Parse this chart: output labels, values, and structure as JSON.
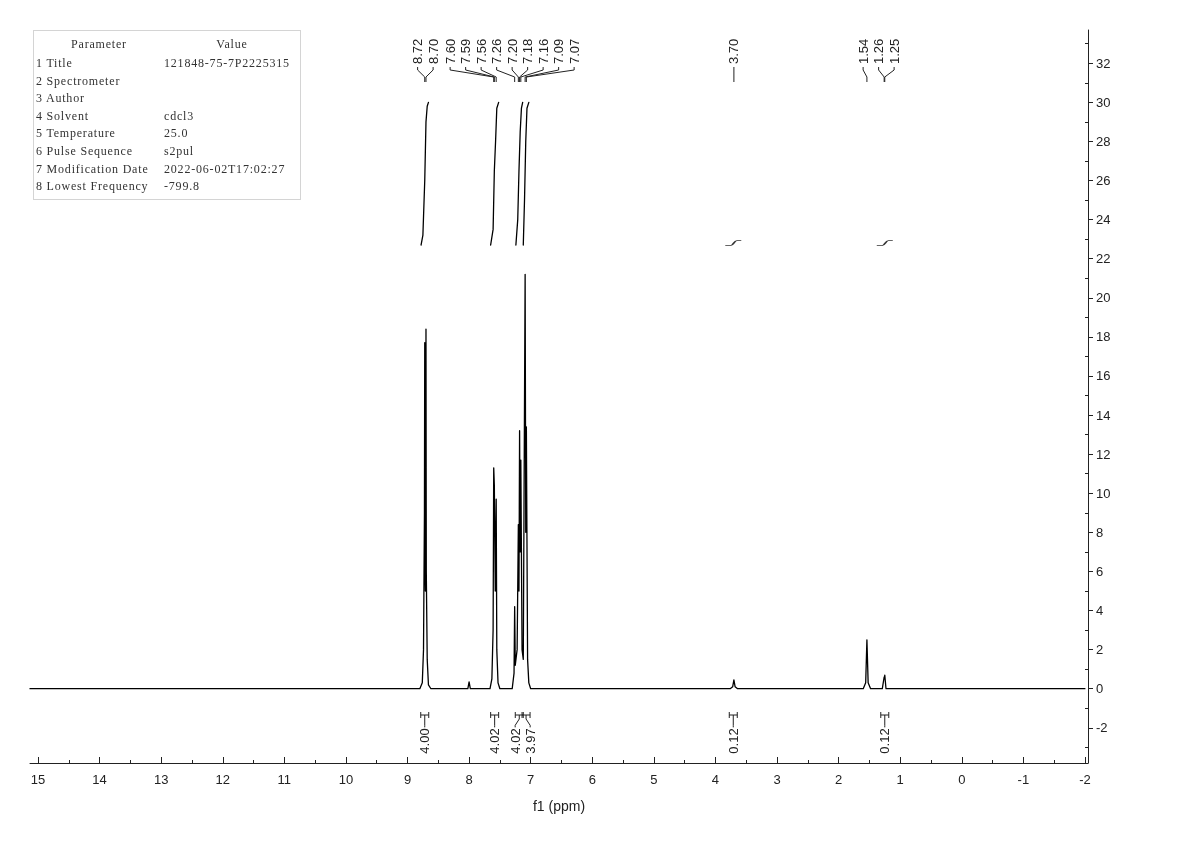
{
  "chart_data": [
    {
      "type": "other",
      "annotations": [
        "Parameter",
        "Value",
        "1 Title",
        "121848-75-7P2225315",
        "2 Spectrometer",
        null,
        "3 Author",
        null,
        "4 Solvent",
        "cdcl3",
        "5 Temperature",
        "25.0",
        "6 Pulse Sequence",
        "s2pul",
        "7 Modification Date",
        "2022-06-02T17:02:27",
        "8 Lowest Frequency",
        "-799.8"
      ]
    },
    {
      "type": "line",
      "xlabel": "f1 (ppm)",
      "xlim": [
        15.13,
        -2.05
      ],
      "xticks": [
        15,
        {
          "value": 14.5,
          "label": null
        },
        14,
        {
          "value": 13.5,
          "label": null
        },
        13,
        {
          "value": 12.5,
          "label": null
        },
        12,
        {
          "value": 11.5,
          "label": null
        },
        11,
        {
          "value": 10.5,
          "label": null
        },
        10,
        {
          "value": 9.5,
          "label": null
        },
        9,
        {
          "value": 8.5,
          "label": null
        },
        8,
        {
          "value": 7.5,
          "label": null
        },
        7,
        {
          "value": 6.5,
          "label": null
        },
        6,
        {
          "value": 5.5,
          "label": null
        },
        5,
        {
          "value": 4.5,
          "label": null
        },
        4,
        {
          "value": 3.5,
          "label": null
        },
        3,
        {
          "value": 2.5,
          "label": null
        },
        2,
        {
          "value": 1.5,
          "label": null
        },
        1,
        {
          "value": 0.5,
          "label": null
        },
        0,
        {
          "value": -0.5,
          "label": null
        },
        -1,
        {
          "value": -1.5,
          "label": null
        },
        -2
      ],
      "ylim": [
        -3.8,
        33.7
      ],
      "yticks": [
        {
          "value": -3,
          "label": null
        },
        -2,
        {
          "value": -1,
          "label": null
        },
        0,
        {
          "value": 1,
          "label": null
        },
        2,
        {
          "value": 3,
          "label": null
        },
        4,
        {
          "value": 5,
          "label": null
        },
        6,
        {
          "value": 7,
          "label": null
        },
        8,
        {
          "value": 9,
          "label": null
        },
        10,
        {
          "value": 11,
          "label": null
        },
        12,
        {
          "value": 13,
          "label": null
        },
        14,
        {
          "value": 15,
          "label": null
        },
        16,
        {
          "value": 17,
          "label": null
        },
        18,
        {
          "value": 19,
          "label": null
        },
        20,
        {
          "value": 21,
          "label": null
        },
        22,
        {
          "value": 23,
          "label": null
        },
        24,
        {
          "value": 25,
          "label": null
        },
        26,
        {
          "value": 27,
          "label": null
        },
        28,
        {
          "value": 29,
          "label": null
        },
        30,
        {
          "value": 31,
          "label": null
        },
        32,
        {
          "value": 33,
          "label": null
        }
      ],
      "series": [
        {
          "color": "#000000",
          "x": [
            15.13,
            13.5,
            12.0,
            10.5,
            9.0,
            8.8,
            8.76,
            8.74,
            8.725,
            8.72,
            8.715,
            8.71,
            8.705,
            8.7,
            8.695,
            8.68,
            8.66,
            8.62,
            8.3,
            8.02,
            8.0,
            7.98,
            7.66,
            7.63,
            7.61,
            7.6,
            7.59,
            7.575,
            7.56,
            7.55,
            7.53,
            7.5,
            7.3,
            7.27,
            7.26,
            7.25,
            7.22,
            7.2,
            7.19,
            7.18,
            7.17,
            7.16,
            7.14,
            7.12,
            7.09,
            7.08,
            7.07,
            7.05,
            7.03,
            7.0,
            6.0,
            5.0,
            3.76,
            3.72,
            3.7,
            3.68,
            3.64,
            2.5,
            1.6,
            1.56,
            1.54,
            1.52,
            1.48,
            1.29,
            1.26,
            1.255,
            1.25,
            1.23,
            1.2,
            0.0,
            -1.0,
            -2.0
          ],
          "values": [
            0,
            0,
            0,
            0,
            0,
            0,
            0.3,
            2,
            9,
            17.7,
            6,
            5,
            6,
            18.4,
            6,
            1.5,
            0.2,
            0,
            0,
            0,
            0.35,
            0,
            0,
            0.5,
            3,
            11.3,
            10.4,
            5,
            9.7,
            2,
            0.3,
            0,
            0,
            0.8,
            4.2,
            1.2,
            2,
            8.4,
            5,
            13.2,
            7,
            11.7,
            2,
            1.5,
            21.2,
            8,
            13.4,
            1.5,
            0.3,
            0,
            0,
            0,
            0,
            0.1,
            0.45,
            0.1,
            0,
            0,
            0,
            0.3,
            2.5,
            0.3,
            0,
            0,
            0.6,
            0.5,
            0.7,
            0,
            0,
            0,
            0,
            0
          ]
        },
        {
          "color": "#000000",
          "x": [
            8.78,
            8.75,
            8.72,
            8.7,
            8.68,
            8.66,
            8.2,
            7.65,
            7.61,
            7.59,
            7.57,
            7.55,
            7.52,
            7.4,
            7.24,
            7.21,
            7.19,
            7.17,
            7.15,
            7.13,
            7.125,
            7.12,
            7.1,
            7.08,
            7.06,
            7.03
          ],
          "values": [
            22.7,
            23.2,
            26.0,
            29.0,
            29.8,
            30.0,
            null,
            22.7,
            23.5,
            26.5,
            28.0,
            29.7,
            30.0,
            null,
            22.7,
            24.0,
            26.5,
            28.5,
            29.7,
            30.0,
            null,
            22.7,
            25.0,
            28.0,
            29.7,
            30.0
          ]
        },
        {
          "type": "scatter",
          "color": "#000000",
          "x": [
            3.71,
            1.25
          ],
          "values": [
            22.8,
            22.8
          ]
        }
      ],
      "annotations": [
        {
          "text": "8.72",
          "x": 8.72
        },
        {
          "text": "8.70",
          "x": 8.7
        },
        {
          "text": "7.60",
          "x": 7.6
        },
        {
          "text": "7.59",
          "x": 7.59
        },
        {
          "text": "7.56",
          "x": 7.56
        },
        {
          "text": "7.26",
          "x": 7.26
        },
        {
          "text": "7.20",
          "x": 7.2
        },
        {
          "text": "7.18",
          "x": 7.18
        },
        {
          "text": "7.16",
          "x": 7.16
        },
        {
          "text": "7.09",
          "x": 7.09
        },
        {
          "text": "7.07",
          "x": 7.07
        },
        {
          "text": "3.70",
          "x": 3.7
        },
        {
          "text": "1.54",
          "x": 1.54
        },
        {
          "text": "1.26",
          "x": 1.26
        },
        {
          "text": "1.25",
          "x": 1.25
        },
        "4.00",
        "4.02",
        "4.02",
        "3.97",
        "0.12",
        "0.12"
      ]
    }
  ]
}
